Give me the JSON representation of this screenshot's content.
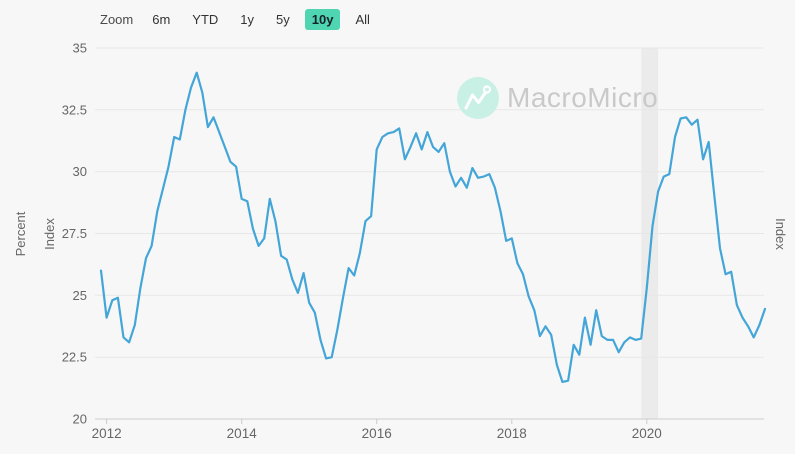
{
  "toolbar": {
    "zoom_label": "Zoom",
    "ranges": [
      {
        "label": "6m",
        "active": false
      },
      {
        "label": "YTD",
        "active": false
      },
      {
        "label": "1y",
        "active": false
      },
      {
        "label": "5y",
        "active": false
      },
      {
        "label": "10y",
        "active": true
      },
      {
        "label": "All",
        "active": false
      }
    ],
    "active_bg": "#4fd5b2"
  },
  "watermark": {
    "text": "MacroMicro",
    "circle_color": "#c8f0e4",
    "text_color": "#c9c9c9"
  },
  "chart_data": {
    "type": "line",
    "title": "",
    "ylabel_left": [
      "Percent",
      "Index"
    ],
    "ylabel_right": "Index",
    "ylim": [
      20,
      35
    ],
    "y_ticks": [
      20,
      22.5,
      25,
      27.5,
      30,
      32.5,
      35
    ],
    "x_tick_years": [
      2012,
      2014,
      2016,
      2018,
      2020
    ],
    "grid": true,
    "legend": false,
    "line_color": "#44a5d8",
    "grid_color": "#e7e7e7",
    "axis_color": "#cccccc",
    "tick_label_color": "#666666",
    "recession_band": {
      "from": "2019-12",
      "to": "2020-03",
      "color": "#ebebeb"
    },
    "series": [
      {
        "name": "Index",
        "start_month": "2011-12",
        "frequency": "monthly",
        "values": [
          26.0,
          24.1,
          24.8,
          24.9,
          23.3,
          23.1,
          23.8,
          25.3,
          26.5,
          27.0,
          28.4,
          29.3,
          30.2,
          31.4,
          31.3,
          32.5,
          33.4,
          34.0,
          33.2,
          31.8,
          32.2,
          31.6,
          31.0,
          30.4,
          30.2,
          28.9,
          28.8,
          27.7,
          27.0,
          27.3,
          28.9,
          28.0,
          26.6,
          26.45,
          25.65,
          25.1,
          25.9,
          24.7,
          24.3,
          23.2,
          22.45,
          22.5,
          23.6,
          24.9,
          26.1,
          25.8,
          26.7,
          28.0,
          28.2,
          30.9,
          31.4,
          31.55,
          31.6,
          31.75,
          30.5,
          31.0,
          31.55,
          30.9,
          31.6,
          31.0,
          30.8,
          31.15,
          30.0,
          29.4,
          29.75,
          29.35,
          30.15,
          29.75,
          29.8,
          29.9,
          29.35,
          28.4,
          27.2,
          27.3,
          26.3,
          25.85,
          24.95,
          24.4,
          23.35,
          23.75,
          23.4,
          22.2,
          21.5,
          21.55,
          23.0,
          22.6,
          24.1,
          23.0,
          24.4,
          23.35,
          23.2,
          23.2,
          22.7,
          23.1,
          23.3,
          23.2,
          23.25,
          25.3,
          27.8,
          29.2,
          29.8,
          29.9,
          31.4,
          32.15,
          32.2,
          31.9,
          32.1,
          30.5,
          31.2,
          29.0,
          26.9,
          25.85,
          25.95,
          24.6,
          24.1,
          23.75,
          23.3,
          23.8,
          24.45
        ]
      }
    ]
  }
}
